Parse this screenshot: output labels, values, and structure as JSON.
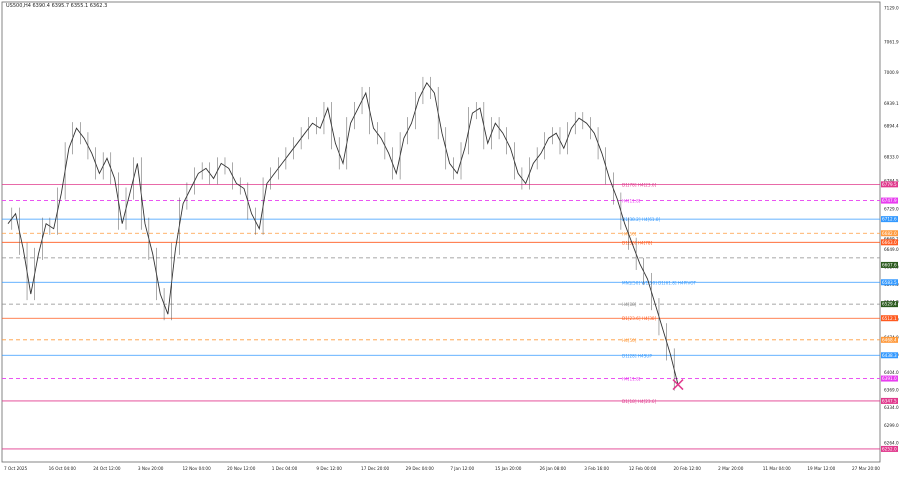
{
  "window": {
    "symbol_line": "US500,H4 6390.4 6395.7 6355.1 6362.3"
  },
  "chart_data": {
    "type": "candlestick",
    "title": "",
    "xlabel": "",
    "ylabel": "",
    "ylim": [
      6226.0,
      7141.0
    ],
    "x_ticks": [
      "7 Oct 2025",
      "16 Oct 04:00",
      "24 Oct 12:00",
      "3 Nov 20:00",
      "12 Nov 04:00",
      "20 Nov 12:00",
      "1 Dec 04:00",
      "9 Dec 12:00",
      "17 Dec 20:00",
      "29 Dec 04:00",
      "7 Jan 12:00",
      "15 Jan 20:00",
      "26 Jan 08:00",
      "3 Feb 16:00",
      "12 Feb 00:00",
      "20 Feb 12:00",
      "2 Mar 20:00",
      "11 Mar 04:00",
      "19 Mar 12:00",
      "27 Mar 20:00"
    ],
    "y_ticks": [
      "7129.0",
      "7061.9",
      "7000.9",
      "6939.1",
      "6894.4",
      "6833.0",
      "6784.5",
      "6729.0",
      "6669.1",
      "6649.0",
      "6614.0",
      "6579.0",
      "6544.0",
      "6509.0",
      "6474.0",
      "6439.0",
      "6404.0",
      "6369.0",
      "6334.0",
      "6299.0",
      "6264.0"
    ],
    "close_path": [
      [
        0,
        6700
      ],
      [
        2,
        6720
      ],
      [
        4,
        6650
      ],
      [
        6,
        6560
      ],
      [
        8,
        6640
      ],
      [
        10,
        6700
      ],
      [
        12,
        6690
      ],
      [
        14,
        6760
      ],
      [
        16,
        6850
      ],
      [
        18,
        6890
      ],
      [
        20,
        6870
      ],
      [
        22,
        6840
      ],
      [
        24,
        6800
      ],
      [
        26,
        6830
      ],
      [
        28,
        6790
      ],
      [
        30,
        6700
      ],
      [
        32,
        6760
      ],
      [
        34,
        6820
      ],
      [
        36,
        6700
      ],
      [
        38,
        6640
      ],
      [
        40,
        6560
      ],
      [
        42,
        6520
      ],
      [
        44,
        6650
      ],
      [
        46,
        6740
      ],
      [
        48,
        6770
      ],
      [
        50,
        6800
      ],
      [
        52,
        6810
      ],
      [
        54,
        6790
      ],
      [
        56,
        6820
      ],
      [
        58,
        6810
      ],
      [
        60,
        6780
      ],
      [
        62,
        6770
      ],
      [
        64,
        6720
      ],
      [
        66,
        6690
      ],
      [
        68,
        6780
      ],
      [
        70,
        6800
      ],
      [
        72,
        6820
      ],
      [
        74,
        6840
      ],
      [
        76,
        6860
      ],
      [
        78,
        6880
      ],
      [
        80,
        6900
      ],
      [
        82,
        6890
      ],
      [
        84,
        6930
      ],
      [
        86,
        6860
      ],
      [
        88,
        6820
      ],
      [
        90,
        6900
      ],
      [
        92,
        6930
      ],
      [
        94,
        6960
      ],
      [
        96,
        6890
      ],
      [
        98,
        6870
      ],
      [
        100,
        6840
      ],
      [
        102,
        6800
      ],
      [
        104,
        6870
      ],
      [
        106,
        6900
      ],
      [
        108,
        6950
      ],
      [
        110,
        6980
      ],
      [
        112,
        6960
      ],
      [
        114,
        6880
      ],
      [
        116,
        6820
      ],
      [
        118,
        6800
      ],
      [
        120,
        6850
      ],
      [
        122,
        6920
      ],
      [
        124,
        6930
      ],
      [
        126,
        6860
      ],
      [
        128,
        6900
      ],
      [
        130,
        6880
      ],
      [
        132,
        6850
      ],
      [
        134,
        6800
      ],
      [
        136,
        6780
      ],
      [
        138,
        6820
      ],
      [
        140,
        6840
      ],
      [
        142,
        6870
      ],
      [
        144,
        6880
      ],
      [
        146,
        6850
      ],
      [
        148,
        6890
      ],
      [
        150,
        6910
      ],
      [
        152,
        6900
      ],
      [
        154,
        6880
      ],
      [
        156,
        6840
      ],
      [
        158,
        6790
      ],
      [
        160,
        6750
      ],
      [
        162,
        6700
      ],
      [
        164,
        6660
      ],
      [
        166,
        6620
      ],
      [
        168,
        6590
      ],
      [
        170,
        6540
      ],
      [
        172,
        6490
      ],
      [
        174,
        6440
      ],
      [
        176,
        6380
      ]
    ],
    "levels": [
      {
        "label": "D1[78] H4[23.6]",
        "value": 6778.3,
        "color": "#e0388c",
        "style": "solid"
      },
      {
        "label": "H4[11.8]",
        "value": 6746.0,
        "color": "#e83cf0",
        "style": "dashed"
      },
      {
        "label": "D1[38.2] H4[61.8]",
        "value": 6709.1,
        "color": "#3399ff",
        "style": "solid"
      },
      {
        "label": "H4[50]",
        "value": 6681.0,
        "color": "#ff9a3c",
        "style": "dashed"
      },
      {
        "label": "D1[50] H4[78]",
        "value": 6663.0,
        "color": "#ff5a1f",
        "style": "solid"
      },
      {
        "label": "",
        "value": 6632.0,
        "color": "#8a8a8a",
        "style": "dashed"
      },
      {
        "label": "MN1[50] W1[50] D1[61.8] H4PIVOT",
        "value": 6583.5,
        "color": "#3399ff",
        "style": "solid"
      },
      {
        "label": "H4[88]",
        "value": 6540.0,
        "color": "#8a8a8a",
        "style": "dashed"
      },
      {
        "label": "D1[23.6] H4[38]",
        "value": 6512.0,
        "color": "#ff5a1f",
        "style": "solid"
      },
      {
        "label": "H4[50]",
        "value": 6469.0,
        "color": "#ff9a3c",
        "style": "dashed"
      },
      {
        "label": "D1[28] H4SUP",
        "value": 6438.3,
        "color": "#3399ff",
        "style": "solid"
      },
      {
        "label": "H4[11.8]",
        "value": 6392.0,
        "color": "#e83cf0",
        "style": "dashed"
      },
      {
        "label": "D1[18] H4[23.6]",
        "value": 6347.5,
        "color": "#e0388c",
        "style": "solid"
      },
      {
        "label": "",
        "value": 6252.0,
        "color": "#e0388c",
        "style": "solid"
      }
    ],
    "price_tags": [
      {
        "label": "6779.5",
        "value": 6778.3,
        "color": "#e0388c"
      },
      {
        "label": "6747.9",
        "value": 6746.0,
        "color": "#e83cf0"
      },
      {
        "label": "6712.6",
        "value": 6709.1,
        "color": "#3399ff"
      },
      {
        "label": "6682.0",
        "value": 6681.0,
        "color": "#ff9a3c"
      },
      {
        "label": "6663.0",
        "value": 6663.0,
        "color": "#ff5a1f"
      },
      {
        "label": "6607.6",
        "value": 6618.0,
        "color": "#2b5a1e"
      },
      {
        "label": "6583.5",
        "value": 6583.5,
        "color": "#3399ff"
      },
      {
        "label": "6529.4",
        "value": 6540.0,
        "color": "#2b5a1e"
      },
      {
        "label": "6512.1",
        "value": 6512.0,
        "color": "#ff5a1f"
      },
      {
        "label": "6468.4",
        "value": 6469.0,
        "color": "#ff9a3c"
      },
      {
        "label": "6438.3",
        "value": 6438.3,
        "color": "#3399ff"
      },
      {
        "label": "6391.0",
        "value": 6392.0,
        "color": "#e83cf0"
      },
      {
        "label": "6347.5",
        "value": 6347.5,
        "color": "#e0388c"
      },
      {
        "label": "6252.0",
        "value": 6252.0,
        "color": "#e0388c"
      }
    ]
  }
}
